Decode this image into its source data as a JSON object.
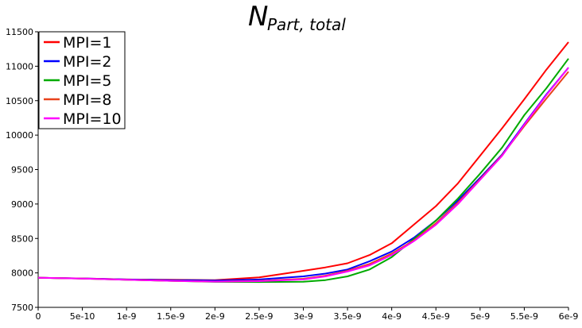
{
  "chart_data": {
    "type": "line",
    "title": "N",
    "title_subscript": "Part, total",
    "xlabel": "",
    "ylabel": "",
    "xlim": [
      0,
      6e-09
    ],
    "ylim": [
      7500,
      11500
    ],
    "x_ticks": [
      0,
      5e-10,
      1e-09,
      1.5e-09,
      2e-09,
      2.5e-09,
      3e-09,
      3.5e-09,
      4e-09,
      4.5e-09,
      5e-09,
      5.5e-09,
      6e-09
    ],
    "x_tick_labels": [
      "0",
      "5e-10",
      "1e-9",
      "1.5e-9",
      "2e-9",
      "2.5e-9",
      "3e-9",
      "3.5e-9",
      "4e-9",
      "4.5e-9",
      "5e-9",
      "5.5e-9",
      "6e-9"
    ],
    "y_ticks": [
      7500,
      8000,
      8500,
      9000,
      9500,
      10000,
      10500,
      11000,
      11500
    ],
    "y_tick_labels": [
      "7500",
      "8000",
      "8500",
      "9000",
      "9500",
      "10000",
      "10500",
      "11000",
      "11500"
    ],
    "grid": false,
    "legend_position": "top-left",
    "x": [
      0,
      5e-10,
      1e-09,
      1.5e-09,
      2e-09,
      2.5e-09,
      3e-09,
      3.25e-09,
      3.5e-09,
      3.75e-09,
      4e-09,
      4.25e-09,
      4.5e-09,
      4.75e-09,
      5e-09,
      5.25e-09,
      5.5e-09,
      5.75e-09,
      6e-09
    ],
    "series": [
      {
        "name": "MPI=1",
        "color": "#ff0000",
        "values": [
          7930,
          7920,
          7905,
          7900,
          7895,
          7935,
          8030,
          8080,
          8140,
          8260,
          8430,
          8700,
          8970,
          9300,
          9700,
          10100,
          10520,
          10950,
          11350
        ]
      },
      {
        "name": "MPI=2",
        "color": "#0000ff",
        "values": [
          7930,
          7920,
          7905,
          7895,
          7890,
          7905,
          7950,
          7990,
          8050,
          8170,
          8310,
          8510,
          8760,
          9050,
          9380,
          9720,
          10160,
          10590,
          10980
        ]
      },
      {
        "name": "MPI=5",
        "color": "#00aa00",
        "values": [
          7930,
          7918,
          7900,
          7885,
          7870,
          7868,
          7872,
          7895,
          7950,
          8050,
          8230,
          8490,
          8760,
          9080,
          9440,
          9820,
          10290,
          10680,
          11110
        ]
      },
      {
        "name": "MPI=8",
        "color": "#e8421c",
        "values": [
          7930,
          7918,
          7900,
          7885,
          7875,
          7885,
          7915,
          7960,
          8030,
          8130,
          8280,
          8470,
          8720,
          9020,
          9360,
          9710,
          10130,
          10530,
          10920
        ]
      },
      {
        "name": "MPI=10",
        "color": "#ff00ff",
        "values": [
          7930,
          7918,
          7900,
          7885,
          7873,
          7880,
          7905,
          7950,
          8020,
          8110,
          8260,
          8460,
          8700,
          9000,
          9350,
          9700,
          10150,
          10580,
          10980
        ]
      }
    ]
  }
}
